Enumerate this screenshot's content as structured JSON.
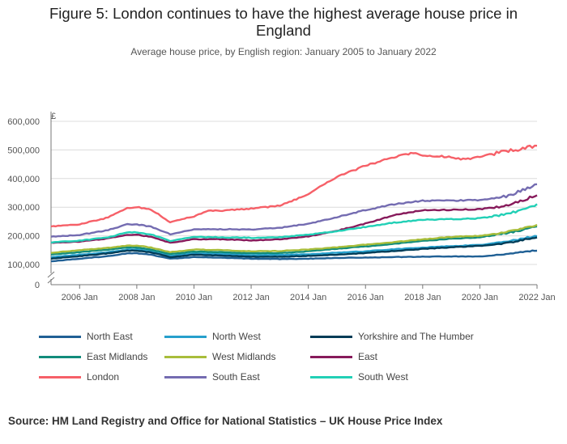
{
  "title_lines": [
    "Figure 5: London continues to have the highest average house price in",
    "England"
  ],
  "subtitle": "Average house price, by English region: January 2005 to January 2022",
  "source": "Source: HM Land Registry and Office for National Statistics – UK House Price Index",
  "chart_data": {
    "type": "line",
    "title": "Figure 5: London continues to have the highest average house price in England",
    "subtitle": "Average house price, by English region: January 2005 to January 2022",
    "y_unit_label": "£",
    "ylim": [
      80000,
      600000
    ],
    "y_axis_break": true,
    "y_ticks": [
      0,
      100000,
      200000,
      300000,
      400000,
      500000,
      600000
    ],
    "y_tick_labels": [
      "0",
      "100,000",
      "200,000",
      "300,000",
      "400,000",
      "500,000",
      "600,000"
    ],
    "xlim": [
      "2005-01",
      "2022-01"
    ],
    "x_ticks": [
      "2006-01",
      "2008-01",
      "2010-01",
      "2012-01",
      "2014-01",
      "2016-01",
      "2018-01",
      "2020-01",
      "2022-01"
    ],
    "x_tick_labels": [
      "2006 Jan",
      "2008 Jan",
      "2010 Jan",
      "2012 Jan",
      "2014 Jan",
      "2016 Jan",
      "2018 Jan",
      "2020 Jan",
      "2022 Jan"
    ],
    "grid": "horizontal",
    "legend_position": "bottom",
    "series": [
      {
        "name": "North East",
        "color": "#206095",
        "points": [
          [
            "2005-01",
            111000
          ],
          [
            "2006-01",
            120000
          ],
          [
            "2007-01",
            129000
          ],
          [
            "2007-09",
            139000
          ],
          [
            "2008-01",
            139000
          ],
          [
            "2008-07",
            134000
          ],
          [
            "2009-03",
            120000
          ],
          [
            "2010-01",
            126000
          ],
          [
            "2011-01",
            124000
          ],
          [
            "2012-01",
            120000
          ],
          [
            "2013-01",
            119000
          ],
          [
            "2014-01",
            120000
          ],
          [
            "2015-01",
            123000
          ],
          [
            "2016-01",
            124000
          ],
          [
            "2017-01",
            126000
          ],
          [
            "2018-01",
            127000
          ],
          [
            "2019-01",
            128000
          ],
          [
            "2020-01",
            128000
          ],
          [
            "2021-01",
            136000
          ],
          [
            "2022-01",
            150000
          ]
        ]
      },
      {
        "name": "North West",
        "color": "#27a0cc",
        "points": [
          [
            "2005-01",
            126000
          ],
          [
            "2006-01",
            134000
          ],
          [
            "2007-01",
            143000
          ],
          [
            "2007-09",
            152000
          ],
          [
            "2008-01",
            152000
          ],
          [
            "2008-07",
            146000
          ],
          [
            "2009-03",
            130000
          ],
          [
            "2010-01",
            139000
          ],
          [
            "2011-01",
            137000
          ],
          [
            "2012-01",
            133000
          ],
          [
            "2013-01",
            133000
          ],
          [
            "2014-01",
            136000
          ],
          [
            "2015-01",
            141000
          ],
          [
            "2016-01",
            146000
          ],
          [
            "2017-01",
            153000
          ],
          [
            "2018-01",
            159000
          ],
          [
            "2019-01",
            164000
          ],
          [
            "2020-01",
            168000
          ],
          [
            "2021-01",
            180000
          ],
          [
            "2022-01",
            201000
          ]
        ]
      },
      {
        "name": "Yorkshire and The Humber",
        "color": "#003c57",
        "points": [
          [
            "2005-01",
            120000
          ],
          [
            "2006-01",
            129000
          ],
          [
            "2007-01",
            139000
          ],
          [
            "2007-09",
            148000
          ],
          [
            "2008-01",
            148000
          ],
          [
            "2008-07",
            142000
          ],
          [
            "2009-03",
            126000
          ],
          [
            "2010-01",
            134000
          ],
          [
            "2011-01",
            131000
          ],
          [
            "2012-01",
            127000
          ],
          [
            "2013-01",
            127000
          ],
          [
            "2014-01",
            130000
          ],
          [
            "2015-01",
            134000
          ],
          [
            "2016-01",
            140000
          ],
          [
            "2017-01",
            147000
          ],
          [
            "2018-01",
            154000
          ],
          [
            "2019-01",
            160000
          ],
          [
            "2020-01",
            165000
          ],
          [
            "2021-01",
            175000
          ],
          [
            "2022-01",
            196000
          ]
        ]
      },
      {
        "name": "East Midlands",
        "color": "#118c7b",
        "points": [
          [
            "2005-01",
            135000
          ],
          [
            "2006-01",
            143000
          ],
          [
            "2007-01",
            152000
          ],
          [
            "2007-09",
            160000
          ],
          [
            "2008-01",
            159000
          ],
          [
            "2008-07",
            152000
          ],
          [
            "2009-03",
            136000
          ],
          [
            "2010-01",
            145000
          ],
          [
            "2011-01",
            143000
          ],
          [
            "2012-01",
            139000
          ],
          [
            "2013-01",
            140000
          ],
          [
            "2014-01",
            146000
          ],
          [
            "2015-01",
            155000
          ],
          [
            "2016-01",
            163000
          ],
          [
            "2017-01",
            172000
          ],
          [
            "2018-01",
            182000
          ],
          [
            "2019-01",
            190000
          ],
          [
            "2020-01",
            195000
          ],
          [
            "2021-01",
            210000
          ],
          [
            "2022-01",
            233000
          ]
        ]
      },
      {
        "name": "West Midlands",
        "color": "#a8bd3a",
        "points": [
          [
            "2005-01",
            141000
          ],
          [
            "2006-01",
            150000
          ],
          [
            "2007-01",
            158000
          ],
          [
            "2007-09",
            166000
          ],
          [
            "2008-01",
            166000
          ],
          [
            "2008-07",
            159000
          ],
          [
            "2009-03",
            143000
          ],
          [
            "2010-01",
            152000
          ],
          [
            "2011-01",
            150000
          ],
          [
            "2012-01",
            146000
          ],
          [
            "2013-01",
            147000
          ],
          [
            "2014-01",
            152000
          ],
          [
            "2015-01",
            160000
          ],
          [
            "2016-01",
            169000
          ],
          [
            "2017-01",
            178000
          ],
          [
            "2018-01",
            188000
          ],
          [
            "2019-01",
            196000
          ],
          [
            "2020-01",
            200000
          ],
          [
            "2021-01",
            214000
          ],
          [
            "2022-01",
            236000
          ]
        ]
      },
      {
        "name": "East",
        "color": "#871a5b",
        "points": [
          [
            "2005-01",
            176000
          ],
          [
            "2006-01",
            180000
          ],
          [
            "2007-01",
            191000
          ],
          [
            "2007-09",
            204000
          ],
          [
            "2008-01",
            204000
          ],
          [
            "2008-07",
            196000
          ],
          [
            "2009-03",
            176000
          ],
          [
            "2010-01",
            188000
          ],
          [
            "2011-01",
            188000
          ],
          [
            "2012-01",
            184000
          ],
          [
            "2013-01",
            188000
          ],
          [
            "2014-01",
            198000
          ],
          [
            "2015-01",
            218000
          ],
          [
            "2016-01",
            243000
          ],
          [
            "2017-01",
            272000
          ],
          [
            "2018-01",
            290000
          ],
          [
            "2019-01",
            291000
          ],
          [
            "2020-01",
            293000
          ],
          [
            "2021-01",
            306000
          ],
          [
            "2022-01",
            342000
          ]
        ]
      },
      {
        "name": "London",
        "color": "#f66068",
        "points": [
          [
            "2005-01",
            233000
          ],
          [
            "2006-01",
            240000
          ],
          [
            "2007-01",
            264000
          ],
          [
            "2007-09",
            298000
          ],
          [
            "2008-01",
            300000
          ],
          [
            "2008-07",
            292000
          ],
          [
            "2009-03",
            248000
          ],
          [
            "2010-01",
            268000
          ],
          [
            "2010-07",
            289000
          ],
          [
            "2011-01",
            288000
          ],
          [
            "2012-01",
            295000
          ],
          [
            "2013-01",
            305000
          ],
          [
            "2014-01",
            345000
          ],
          [
            "2014-07",
            378000
          ],
          [
            "2015-01",
            405000
          ],
          [
            "2016-01",
            445000
          ],
          [
            "2017-01",
            475000
          ],
          [
            "2017-09",
            490000
          ],
          [
            "2018-01",
            482000
          ],
          [
            "2019-01",
            475000
          ],
          [
            "2019-07",
            466000
          ],
          [
            "2020-01",
            478000
          ],
          [
            "2021-01",
            495000
          ],
          [
            "2021-06",
            505000
          ],
          [
            "2022-01",
            516000
          ]
        ]
      },
      {
        "name": "South East",
        "color": "#746cb1",
        "points": [
          [
            "2005-01",
            197000
          ],
          [
            "2006-01",
            203000
          ],
          [
            "2007-01",
            220000
          ],
          [
            "2007-09",
            240000
          ],
          [
            "2008-01",
            240000
          ],
          [
            "2008-07",
            232000
          ],
          [
            "2009-03",
            206000
          ],
          [
            "2010-01",
            222000
          ],
          [
            "2011-01",
            223000
          ],
          [
            "2012-01",
            222000
          ],
          [
            "2013-01",
            228000
          ],
          [
            "2014-01",
            242000
          ],
          [
            "2015-01",
            265000
          ],
          [
            "2016-01",
            290000
          ],
          [
            "2017-01",
            310000
          ],
          [
            "2018-01",
            323000
          ],
          [
            "2019-01",
            323000
          ],
          [
            "2020-01",
            325000
          ],
          [
            "2021-01",
            340000
          ],
          [
            "2022-01",
            380000
          ]
        ]
      },
      {
        "name": "South West",
        "color": "#22d0b6",
        "points": [
          [
            "2005-01",
            177000
          ],
          [
            "2006-01",
            183000
          ],
          [
            "2007-01",
            195000
          ],
          [
            "2007-09",
            212000
          ],
          [
            "2008-01",
            212000
          ],
          [
            "2008-07",
            205000
          ],
          [
            "2009-03",
            182000
          ],
          [
            "2010-01",
            196000
          ],
          [
            "2011-01",
            195000
          ],
          [
            "2012-01",
            193000
          ],
          [
            "2013-01",
            195000
          ],
          [
            "2014-01",
            204000
          ],
          [
            "2015-01",
            216000
          ],
          [
            "2016-01",
            231000
          ],
          [
            "2017-01",
            246000
          ],
          [
            "2018-01",
            256000
          ],
          [
            "2019-01",
            258000
          ],
          [
            "2020-01",
            261000
          ],
          [
            "2021-01",
            276000
          ],
          [
            "2022-01",
            310000
          ]
        ]
      }
    ]
  }
}
